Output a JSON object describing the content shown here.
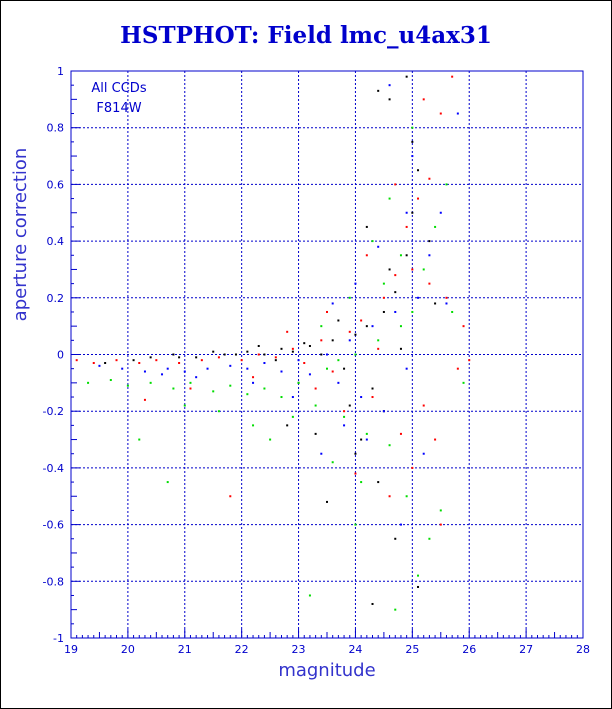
{
  "chart_data": {
    "type": "scatter",
    "title": "HSTPHOT: Field lmc_u4ax31",
    "xlabel": "magnitude",
    "ylabel": "aperture correction",
    "xlim": [
      19,
      28
    ],
    "ylim": [
      -1,
      1
    ],
    "xticks": [
      "19",
      "20",
      "21",
      "22",
      "23",
      "24",
      "25",
      "26",
      "27",
      "28"
    ],
    "yticks": [
      "-1",
      "-0.8",
      "-0.6",
      "-0.4",
      "-0.2",
      "0",
      "0.2",
      "0.4",
      "0.6",
      "0.8",
      "1"
    ],
    "annotations": [
      "All CCDs",
      "F814W"
    ],
    "grid": true,
    "colors": {
      "frame": "#0000cc",
      "grid": "#0000cc",
      "text": "#0000cc"
    },
    "series": [
      {
        "color": "#000000",
        "points": [
          [
            19.6,
            -0.03
          ],
          [
            20.1,
            -0.02
          ],
          [
            20.4,
            -0.01
          ],
          [
            20.8,
            0.0
          ],
          [
            21.2,
            -0.01
          ],
          [
            21.5,
            0.01
          ],
          [
            21.9,
            0.0
          ],
          [
            22.1,
            0.01
          ],
          [
            22.4,
            0.0
          ],
          [
            22.7,
            0.02
          ],
          [
            22.9,
            0.01
          ],
          [
            23.2,
            0.03
          ],
          [
            23.4,
            0.0
          ],
          [
            23.6,
            0.05
          ],
          [
            23.8,
            -0.05
          ],
          [
            24.0,
            0.07
          ],
          [
            24.2,
            0.1
          ],
          [
            24.3,
            -0.12
          ],
          [
            24.5,
            0.15
          ],
          [
            24.7,
            0.22
          ],
          [
            24.9,
            0.35
          ],
          [
            25.0,
            0.5
          ],
          [
            25.1,
            0.65
          ],
          [
            24.6,
            0.9
          ],
          [
            24.4,
            0.93
          ],
          [
            24.9,
            0.98
          ],
          [
            24.1,
            -0.3
          ],
          [
            24.4,
            -0.45
          ],
          [
            24.7,
            -0.65
          ],
          [
            25.1,
            -0.82
          ],
          [
            24.3,
            -0.88
          ],
          [
            23.5,
            -0.52
          ],
          [
            22.8,
            -0.25
          ],
          [
            25.3,
            0.4
          ],
          [
            24.8,
            0.02
          ],
          [
            23.9,
            -0.18
          ],
          [
            23.1,
            0.04
          ],
          [
            22.3,
            0.03
          ],
          [
            21.7,
            0.0
          ],
          [
            20.9,
            -0.01
          ],
          [
            23.3,
            -0.28
          ],
          [
            24.6,
            0.3
          ],
          [
            24.0,
            -0.35
          ],
          [
            25.4,
            0.18
          ],
          [
            23.7,
            0.12
          ],
          [
            24.2,
            0.45
          ],
          [
            22.6,
            -0.02
          ],
          [
            23.0,
            -0.1
          ],
          [
            24.5,
            -0.2
          ],
          [
            25.0,
            0.75
          ]
        ]
      },
      {
        "color": "#ff0000",
        "points": [
          [
            19.1,
            -0.02
          ],
          [
            19.4,
            -0.03
          ],
          [
            19.8,
            -0.02
          ],
          [
            20.2,
            -0.03
          ],
          [
            20.5,
            -0.02
          ],
          [
            20.9,
            -0.03
          ],
          [
            21.3,
            -0.02
          ],
          [
            21.6,
            -0.01
          ],
          [
            22.0,
            -0.02
          ],
          [
            22.3,
            0.0
          ],
          [
            22.6,
            -0.01
          ],
          [
            22.9,
            0.02
          ],
          [
            23.1,
            -0.03
          ],
          [
            23.4,
            0.05
          ],
          [
            23.6,
            -0.06
          ],
          [
            23.9,
            0.08
          ],
          [
            24.1,
            0.12
          ],
          [
            24.3,
            -0.15
          ],
          [
            24.5,
            0.2
          ],
          [
            24.7,
            0.28
          ],
          [
            24.9,
            0.45
          ],
          [
            25.1,
            0.55
          ],
          [
            25.3,
            0.62
          ],
          [
            25.5,
            0.85
          ],
          [
            25.7,
            0.98
          ],
          [
            25.2,
            0.9
          ],
          [
            24.8,
            -0.28
          ],
          [
            25.0,
            -0.4
          ],
          [
            25.4,
            -0.3
          ],
          [
            24.6,
            -0.5
          ],
          [
            25.6,
            0.2
          ],
          [
            25.8,
            -0.05
          ],
          [
            24.2,
            0.35
          ],
          [
            23.8,
            -0.2
          ],
          [
            23.3,
            -0.12
          ],
          [
            22.8,
            0.08
          ],
          [
            24.4,
            0.02
          ],
          [
            25.2,
            -0.18
          ],
          [
            25.5,
            -0.6
          ],
          [
            21.8,
            -0.5
          ],
          [
            20.3,
            -0.16
          ],
          [
            21.1,
            -0.12
          ],
          [
            22.2,
            -0.08
          ],
          [
            23.5,
            0.15
          ],
          [
            24.0,
            -0.42
          ],
          [
            25.0,
            0.3
          ],
          [
            24.7,
            0.6
          ],
          [
            25.3,
            0.25
          ],
          [
            25.9,
            0.1
          ],
          [
            26.0,
            -0.02
          ]
        ]
      },
      {
        "color": "#0000ff",
        "points": [
          [
            19.5,
            -0.04
          ],
          [
            19.9,
            -0.05
          ],
          [
            20.3,
            -0.06
          ],
          [
            20.7,
            -0.05
          ],
          [
            21.0,
            -0.06
          ],
          [
            21.4,
            -0.05
          ],
          [
            21.8,
            -0.04
          ],
          [
            22.1,
            -0.05
          ],
          [
            22.4,
            -0.03
          ],
          [
            22.7,
            -0.06
          ],
          [
            23.0,
            -0.02
          ],
          [
            23.2,
            -0.07
          ],
          [
            23.5,
            0.0
          ],
          [
            23.7,
            -0.1
          ],
          [
            23.9,
            0.05
          ],
          [
            24.1,
            -0.15
          ],
          [
            24.3,
            0.1
          ],
          [
            24.5,
            -0.2
          ],
          [
            24.7,
            0.15
          ],
          [
            24.9,
            -0.05
          ],
          [
            25.1,
            0.2
          ],
          [
            25.3,
            0.35
          ],
          [
            25.5,
            0.5
          ],
          [
            25.8,
            0.85
          ],
          [
            24.6,
            0.95
          ],
          [
            24.2,
            -0.3
          ],
          [
            24.8,
            -0.6
          ],
          [
            23.4,
            -0.35
          ],
          [
            22.9,
            -0.15
          ],
          [
            25.0,
            0.7
          ],
          [
            25.6,
            0.18
          ],
          [
            24.4,
            0.38
          ],
          [
            23.8,
            -0.25
          ],
          [
            21.2,
            -0.08
          ],
          [
            20.6,
            -0.07
          ],
          [
            22.2,
            -0.1
          ],
          [
            23.6,
            0.18
          ],
          [
            24.0,
            0.25
          ],
          [
            25.2,
            -0.35
          ],
          [
            24.9,
            0.5
          ]
        ]
      },
      {
        "color": "#00dd00",
        "points": [
          [
            19.3,
            -0.1
          ],
          [
            19.7,
            -0.09
          ],
          [
            20.0,
            -0.11
          ],
          [
            20.4,
            -0.1
          ],
          [
            20.8,
            -0.12
          ],
          [
            21.1,
            -0.1
          ],
          [
            21.5,
            -0.13
          ],
          [
            21.8,
            -0.11
          ],
          [
            22.1,
            -0.14
          ],
          [
            22.4,
            -0.12
          ],
          [
            22.7,
            -0.15
          ],
          [
            23.0,
            -0.1
          ],
          [
            23.3,
            -0.18
          ],
          [
            23.5,
            -0.05
          ],
          [
            23.8,
            -0.22
          ],
          [
            24.0,
            0.0
          ],
          [
            24.2,
            -0.28
          ],
          [
            24.4,
            0.05
          ],
          [
            24.6,
            -0.32
          ],
          [
            24.8,
            0.1
          ],
          [
            25.0,
            0.15
          ],
          [
            25.2,
            0.3
          ],
          [
            25.4,
            0.45
          ],
          [
            25.6,
            0.6
          ],
          [
            24.5,
            0.25
          ],
          [
            24.9,
            -0.5
          ],
          [
            25.3,
            -0.65
          ],
          [
            24.1,
            -0.45
          ],
          [
            23.6,
            -0.38
          ],
          [
            22.5,
            -0.3
          ],
          [
            21.0,
            -0.18
          ],
          [
            20.2,
            -0.3
          ],
          [
            20.7,
            -0.45
          ],
          [
            23.2,
            -0.85
          ],
          [
            24.7,
            -0.9
          ],
          [
            25.1,
            -0.78
          ],
          [
            25.5,
            -0.55
          ],
          [
            23.9,
            0.2
          ],
          [
            24.3,
            0.4
          ],
          [
            24.6,
            0.55
          ],
          [
            25.7,
            0.15
          ],
          [
            25.9,
            -0.1
          ],
          [
            22.9,
            -0.22
          ],
          [
            23.4,
            0.1
          ],
          [
            24.0,
            -0.6
          ],
          [
            21.6,
            -0.2
          ],
          [
            22.2,
            -0.25
          ],
          [
            25.0,
            0.8
          ],
          [
            24.8,
            0.35
          ],
          [
            23.7,
            -0.02
          ]
        ]
      }
    ]
  }
}
